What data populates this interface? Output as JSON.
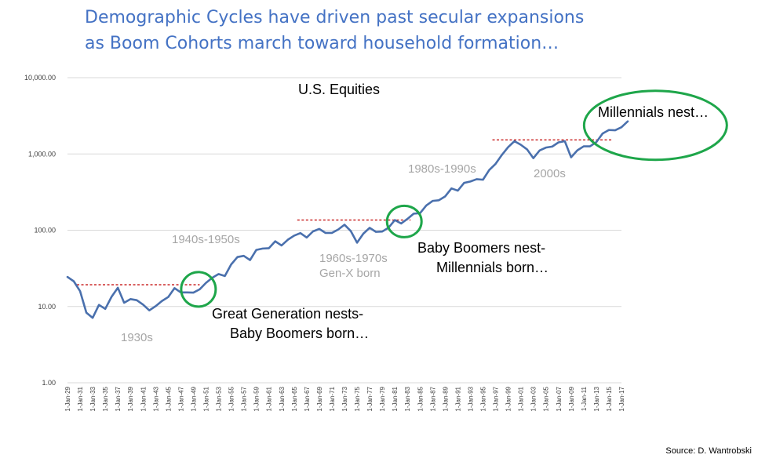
{
  "header": {
    "title_line1": "Demographic Cycles have driven past secular expansions",
    "title_line2": "as Boom Cohorts march toward household formation…"
  },
  "source": "Source: D. Wantrobski",
  "colors": {
    "line": "#4a70ad",
    "title": "#4472c4",
    "ellipse": "#1ea64a",
    "dash": "#c00000",
    "decade": "#a6a6a6"
  },
  "chart_data": {
    "type": "line",
    "title": "U.S. Equities",
    "scale": "log",
    "ylim": [
      1,
      10000
    ],
    "y_ticks": [
      "1.00",
      "10.00",
      "100.00",
      "1,000.00",
      "10,000.00"
    ],
    "y_tick_values": [
      1,
      10,
      100,
      1000,
      10000
    ],
    "grid": true,
    "x_ticks": [
      "1-Jan-29",
      "1-Jan-31",
      "1-Jan-33",
      "1-Jan-35",
      "1-Jan-37",
      "1-Jan-39",
      "1-Jan-41",
      "1-Jan-43",
      "1-Jan-45",
      "1-Jan-47",
      "1-Jan-49",
      "1-Jan-51",
      "1-Jan-53",
      "1-Jan-55",
      "1-Jan-57",
      "1-Jan-59",
      "1-Jan-61",
      "1-Jan-63",
      "1-Jan-65",
      "1-Jan-67",
      "1-Jan-69",
      "1-Jan-71",
      "1-Jan-73",
      "1-Jan-75",
      "1-Jan-77",
      "1-Jan-79",
      "1-Jan-81",
      "1-Jan-83",
      "1-Jan-85",
      "1-Jan-87",
      "1-Jan-89",
      "1-Jan-91",
      "1-Jan-93",
      "1-Jan-95",
      "1-Jan-97",
      "1-Jan-99",
      "1-Jan-01",
      "1-Jan-03",
      "1-Jan-05",
      "1-Jan-07",
      "1-Jan-09",
      "1-Jan-11",
      "1-Jan-13",
      "1-Jan-15",
      "1-Jan-17"
    ],
    "series": [
      {
        "x_start_year": 1929,
        "values": [
          24.4,
          21.4,
          15.9,
          8.3,
          7.1,
          10.5,
          9.3,
          13.4,
          17.6,
          11.2,
          12.5,
          12.1,
          10.6,
          8.9,
          10.1,
          11.8,
          13.3,
          17.4,
          15.3,
          15.3,
          15.2,
          16.8,
          20.4,
          23.8,
          26.6,
          25.1,
          35.6,
          44.5,
          46.1,
          40.6,
          55.2,
          57.5,
          58.1,
          71.6,
          63.1,
          75.0,
          84.8,
          91.7,
          80.3,
          96.5,
          103.9,
          92.1,
          92.2,
          102.1,
          118.1,
          97.6,
          68.6,
          90.2,
          107.5,
          95.1,
          96.1,
          107.9,
          135.8,
          122.6,
          140.6,
          164.9,
          167.2,
          211.3,
          242.2,
          247.1,
          277.7,
          353.4,
          330.2,
          417.1,
          435.7,
          466.5,
          459.3,
          615.9,
          740.7,
          970.4,
          1229.2,
          1469.3,
          1320.3,
          1148.1,
          879.8,
          1111.9,
          1211.9,
          1248.3,
          1418.3,
          1468.4,
          903.3,
          1115.1,
          1257.6,
          1257.6,
          1426.2,
          1848.4,
          2058.9,
          2043.9,
          2238.8,
          2673.6
        ]
      }
    ],
    "annotations": {
      "decades": [
        "1930s",
        "1940s-1950s",
        "1960s-1970s",
        "Gen-X born",
        "1980s-1990s",
        "2000s"
      ],
      "callouts": [
        "Great Generation nests-",
        "Baby Boomers born…",
        "Baby Boomers nest-",
        "Millennials born…",
        "Millennials nest…"
      ],
      "thresholds": [
        {
          "from": 1930.5,
          "to": 1950,
          "value": 19.3
        },
        {
          "from": 1965.5,
          "to": 1983.5,
          "value": 136
        },
        {
          "from": 1996.5,
          "to": 2015.5,
          "value": 1527
        }
      ],
      "circles": [
        {
          "year": 1949.8,
          "value": 16.8
        },
        {
          "year": 1982.5,
          "value": 130
        },
        {
          "year": 2013.3,
          "value": 1548
        }
      ]
    }
  }
}
